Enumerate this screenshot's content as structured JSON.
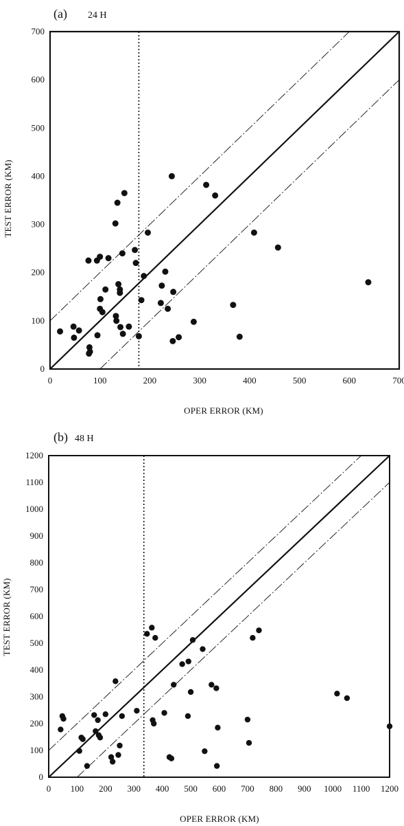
{
  "chart_data": [
    {
      "type": "scatter",
      "panel_label": "(a)",
      "panel_subtitle": "24 H",
      "xlabel": "OPER ERROR (KM)",
      "ylabel": "TEST ERROR (KM)",
      "xlim": [
        0,
        700
      ],
      "ylim": [
        0,
        700
      ],
      "xticks": [
        "0",
        "100",
        "200",
        "300",
        "400",
        "500",
        "600",
        "700"
      ],
      "yticks": [
        "0",
        "100",
        "200",
        "300",
        "400",
        "500",
        "600",
        "700"
      ],
      "grid": false,
      "reference_lines": {
        "identity": true,
        "band_offset_km": 100,
        "vertical_dotted_x": 178
      },
      "points": [
        {
          "x": 20,
          "y": 78
        },
        {
          "x": 47,
          "y": 88
        },
        {
          "x": 48,
          "y": 65
        },
        {
          "x": 58,
          "y": 80
        },
        {
          "x": 77,
          "y": 225
        },
        {
          "x": 78,
          "y": 32
        },
        {
          "x": 79,
          "y": 45
        },
        {
          "x": 80,
          "y": 36
        },
        {
          "x": 94,
          "y": 225
        },
        {
          "x": 95,
          "y": 70
        },
        {
          "x": 100,
          "y": 233
        },
        {
          "x": 100,
          "y": 125
        },
        {
          "x": 101,
          "y": 145
        },
        {
          "x": 105,
          "y": 118
        },
        {
          "x": 111,
          "y": 165
        },
        {
          "x": 117,
          "y": 230
        },
        {
          "x": 131,
          "y": 302
        },
        {
          "x": 132,
          "y": 110
        },
        {
          "x": 133,
          "y": 100
        },
        {
          "x": 135,
          "y": 345
        },
        {
          "x": 137,
          "y": 176
        },
        {
          "x": 140,
          "y": 165
        },
        {
          "x": 140,
          "y": 158
        },
        {
          "x": 141,
          "y": 87
        },
        {
          "x": 145,
          "y": 240
        },
        {
          "x": 146,
          "y": 73
        },
        {
          "x": 149,
          "y": 365
        },
        {
          "x": 158,
          "y": 88
        },
        {
          "x": 170,
          "y": 247
        },
        {
          "x": 172,
          "y": 220
        },
        {
          "x": 178,
          "y": 68
        },
        {
          "x": 183,
          "y": 143
        },
        {
          "x": 188,
          "y": 193
        },
        {
          "x": 196,
          "y": 283
        },
        {
          "x": 222,
          "y": 137
        },
        {
          "x": 224,
          "y": 173
        },
        {
          "x": 231,
          "y": 202
        },
        {
          "x": 236,
          "y": 125
        },
        {
          "x": 244,
          "y": 400
        },
        {
          "x": 246,
          "y": 58
        },
        {
          "x": 247,
          "y": 160
        },
        {
          "x": 258,
          "y": 66
        },
        {
          "x": 288,
          "y": 98
        },
        {
          "x": 313,
          "y": 382
        },
        {
          "x": 331,
          "y": 360
        },
        {
          "x": 367,
          "y": 133
        },
        {
          "x": 380,
          "y": 67
        },
        {
          "x": 409,
          "y": 283
        },
        {
          "x": 457,
          "y": 252
        },
        {
          "x": 638,
          "y": 180
        }
      ]
    },
    {
      "type": "scatter",
      "panel_label": "(b)",
      "panel_subtitle": "48 H",
      "xlabel": "OPER ERROR (KM)",
      "ylabel": "TEST ERROR (KM)",
      "xlim": [
        0,
        1200
      ],
      "ylim": [
        0,
        1200
      ],
      "xticks": [
        "0",
        "100",
        "200",
        "300",
        "400",
        "500",
        "600",
        "700",
        "800",
        "900",
        "1000",
        "1100",
        "1200"
      ],
      "yticks": [
        "0",
        "100",
        "200",
        "300",
        "400",
        "500",
        "600",
        "700",
        "800",
        "900",
        "1000",
        "1100",
        "1200"
      ],
      "grid": false,
      "reference_lines": {
        "identity": true,
        "band_offset_km": 100,
        "vertical_dotted_x": 335
      },
      "points": [
        {
          "x": 42,
          "y": 178
        },
        {
          "x": 48,
          "y": 228
        },
        {
          "x": 52,
          "y": 218
        },
        {
          "x": 108,
          "y": 98
        },
        {
          "x": 115,
          "y": 148
        },
        {
          "x": 120,
          "y": 142
        },
        {
          "x": 135,
          "y": 42
        },
        {
          "x": 160,
          "y": 232
        },
        {
          "x": 165,
          "y": 172
        },
        {
          "x": 173,
          "y": 213
        },
        {
          "x": 176,
          "y": 157
        },
        {
          "x": 181,
          "y": 148
        },
        {
          "x": 200,
          "y": 235
        },
        {
          "x": 220,
          "y": 75
        },
        {
          "x": 225,
          "y": 58
        },
        {
          "x": 235,
          "y": 358
        },
        {
          "x": 245,
          "y": 83
        },
        {
          "x": 250,
          "y": 118
        },
        {
          "x": 258,
          "y": 228
        },
        {
          "x": 310,
          "y": 248
        },
        {
          "x": 346,
          "y": 535
        },
        {
          "x": 363,
          "y": 558
        },
        {
          "x": 366,
          "y": 213
        },
        {
          "x": 370,
          "y": 200
        },
        {
          "x": 375,
          "y": 520
        },
        {
          "x": 407,
          "y": 240
        },
        {
          "x": 425,
          "y": 75
        },
        {
          "x": 432,
          "y": 70
        },
        {
          "x": 440,
          "y": 345
        },
        {
          "x": 470,
          "y": 422
        },
        {
          "x": 490,
          "y": 228
        },
        {
          "x": 492,
          "y": 432
        },
        {
          "x": 500,
          "y": 318
        },
        {
          "x": 507,
          "y": 512
        },
        {
          "x": 542,
          "y": 478
        },
        {
          "x": 549,
          "y": 97
        },
        {
          "x": 573,
          "y": 345
        },
        {
          "x": 590,
          "y": 332
        },
        {
          "x": 592,
          "y": 42
        },
        {
          "x": 595,
          "y": 185
        },
        {
          "x": 700,
          "y": 215
        },
        {
          "x": 705,
          "y": 128
        },
        {
          "x": 718,
          "y": 520
        },
        {
          "x": 740,
          "y": 548
        },
        {
          "x": 1015,
          "y": 312
        },
        {
          "x": 1050,
          "y": 295
        },
        {
          "x": 1200,
          "y": 190
        }
      ]
    }
  ]
}
